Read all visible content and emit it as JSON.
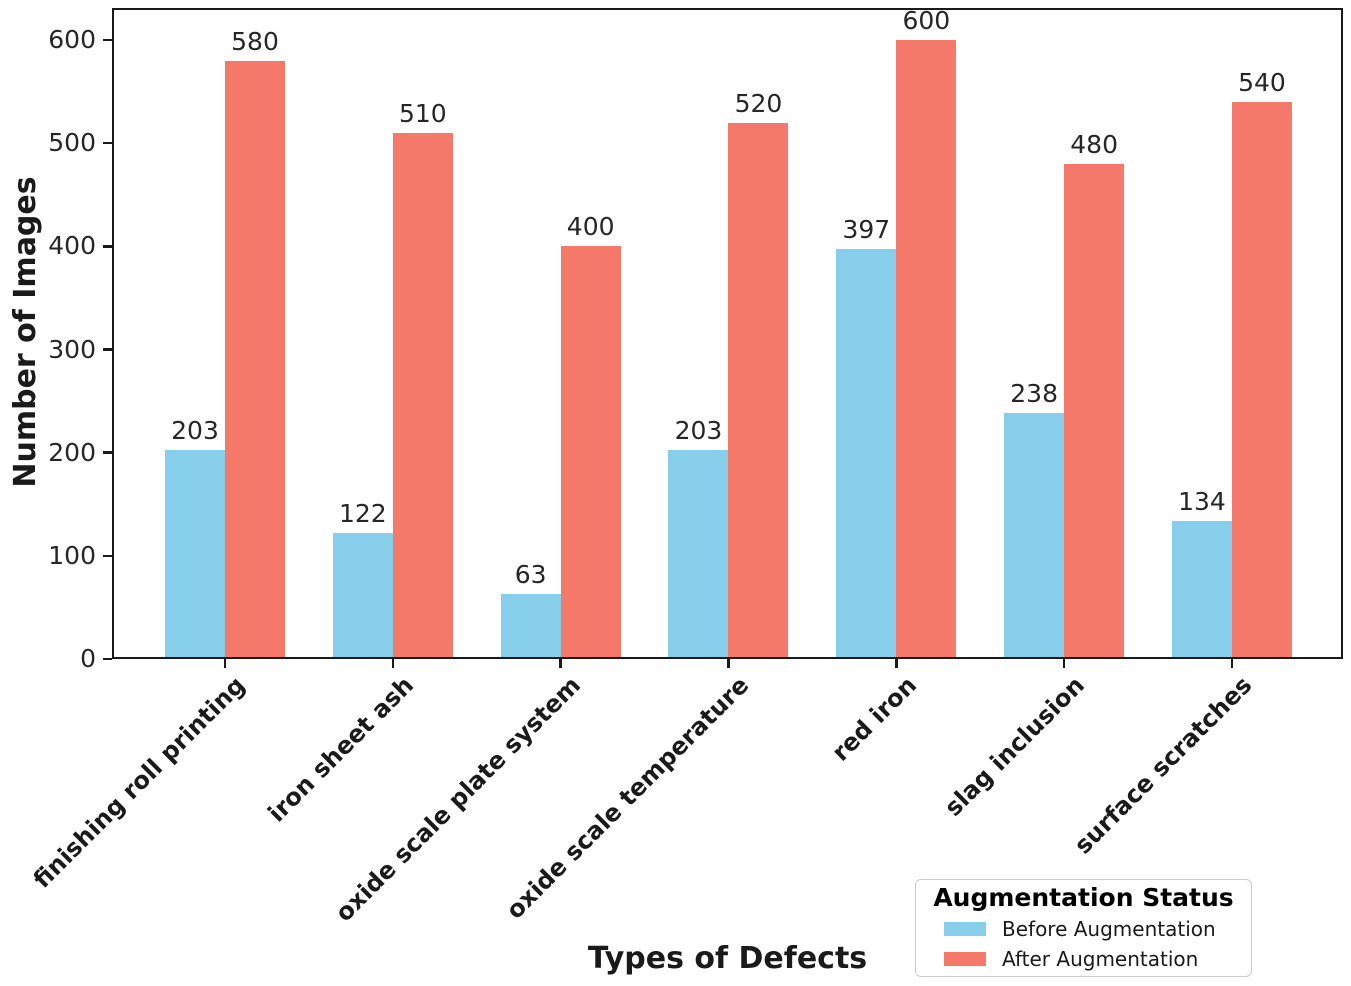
{
  "chart_data": {
    "type": "bar",
    "title": "",
    "xlabel": "Types of Defects",
    "ylabel": "Number of Images",
    "categories": [
      "finishing roll printing",
      "iron sheet ash",
      "oxide scale plate system",
      "oxide scale temperature",
      "red iron",
      "slag inclusion",
      "surface scratches"
    ],
    "series": [
      {
        "name": "Before Augmentation",
        "color": "#87CEEB",
        "values": [
          203,
          122,
          63,
          203,
          397,
          238,
          134
        ]
      },
      {
        "name": "After Augmentation",
        "color": "#F4796B",
        "values": [
          580,
          510,
          400,
          520,
          600,
          480,
          540
        ]
      }
    ],
    "ylim": [
      0,
      600
    ],
    "yticks": [
      0,
      100,
      200,
      300,
      400,
      500,
      600
    ],
    "bar_value_labels": true,
    "grid": false,
    "axis_color": "#1a1a1a",
    "legend": {
      "title": "Augmentation Status",
      "position": "lower right"
    }
  }
}
